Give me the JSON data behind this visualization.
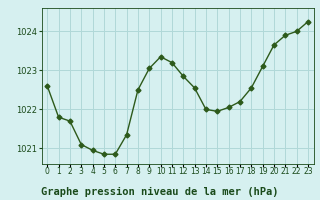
{
  "x": [
    0,
    1,
    2,
    3,
    4,
    5,
    6,
    7,
    8,
    9,
    10,
    11,
    12,
    13,
    14,
    15,
    16,
    17,
    18,
    19,
    20,
    21,
    22,
    23
  ],
  "y": [
    1022.6,
    1021.8,
    1021.7,
    1021.1,
    1020.95,
    1020.85,
    1020.85,
    1021.35,
    1022.5,
    1023.05,
    1023.35,
    1023.2,
    1022.85,
    1022.55,
    1022.0,
    1021.95,
    1022.05,
    1022.2,
    1022.55,
    1023.1,
    1023.65,
    1023.9,
    1024.0,
    1024.25
  ],
  "line_color": "#2d5a1b",
  "marker": "D",
  "markersize": 2.5,
  "linewidth": 1.0,
  "bg_color": "#d6f0f0",
  "grid_color": "#b0d8d8",
  "title": "Graphe pression niveau de la mer (hPa)",
  "title_fontsize": 7.5,
  "title_color": "#1a4a1a",
  "tick_color": "#1a4a1a",
  "tick_fontsize": 6.0,
  "ylim": [
    1020.6,
    1024.6
  ],
  "yticks": [
    1021,
    1022,
    1023,
    1024
  ],
  "xlim": [
    -0.5,
    23.5
  ]
}
